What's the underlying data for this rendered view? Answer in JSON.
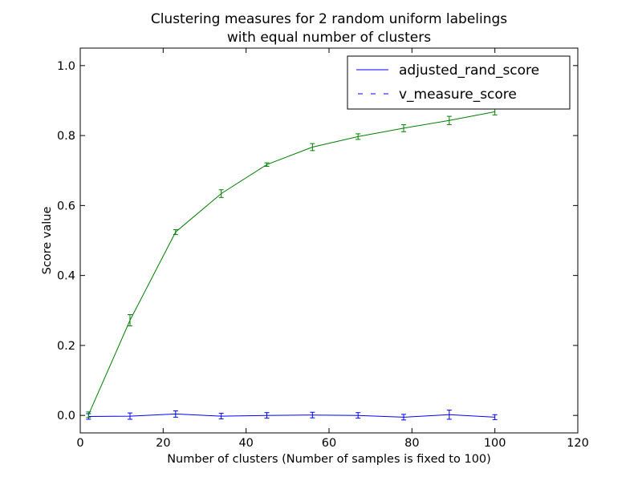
{
  "chart_data": {
    "type": "line",
    "title_line1": "Clustering measures for 2 random uniform labelings",
    "title_line2": "with equal number of clusters",
    "xlabel": "Number of clusters (Number of samples is fixed to 100)",
    "ylabel": "Score value",
    "xlim": [
      0,
      120
    ],
    "ylim": [
      -0.05,
      1.05
    ],
    "xticks": [
      0,
      20,
      40,
      60,
      80,
      100,
      120
    ],
    "xtick_labels": [
      "0",
      "20",
      "40",
      "60",
      "80",
      "100",
      "120"
    ],
    "yticks": [
      0.0,
      0.2,
      0.4,
      0.6,
      0.8,
      1.0
    ],
    "ytick_labels": [
      "0.0",
      "0.2",
      "0.4",
      "0.6",
      "0.8",
      "1.0"
    ],
    "grid": false,
    "legend_position": "top-right",
    "x": [
      2,
      12,
      23,
      34,
      45,
      56,
      67,
      78,
      89,
      100
    ],
    "series": [
      {
        "name": "adjusted_rand_score",
        "color": "#0000ff",
        "values": [
          -0.003,
          -0.002,
          0.004,
          -0.002,
          0.0,
          0.001,
          0.0,
          -0.005,
          0.002,
          -0.005
        ],
        "errors": [
          0.008,
          0.009,
          0.009,
          0.008,
          0.008,
          0.008,
          0.008,
          0.008,
          0.013,
          0.007
        ]
      },
      {
        "name": "v_measure_score",
        "color": "#008000",
        "values": [
          0.002,
          0.272,
          0.524,
          0.634,
          0.717,
          0.767,
          0.797,
          0.821,
          0.843,
          0.868
        ],
        "errors": [
          0.008,
          0.016,
          0.007,
          0.011,
          0.005,
          0.01,
          0.008,
          0.01,
          0.012,
          0.009
        ]
      }
    ]
  }
}
